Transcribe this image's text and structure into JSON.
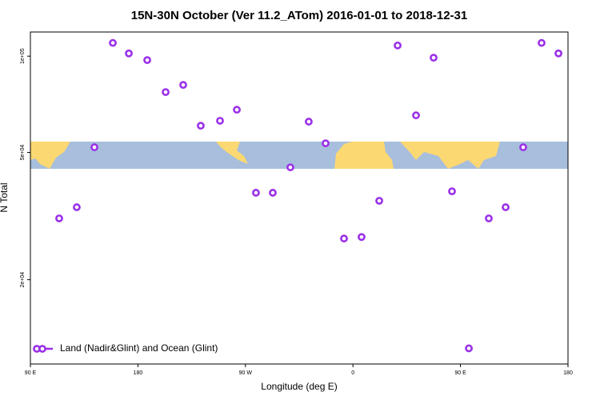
{
  "chart_data": {
    "type": "scatter",
    "title": "15N-30N October (Ver 11.2_ATom)   2016-01-01 to 2018-12-31",
    "x_label": "Longitude (deg E)",
    "y_label": "N Total",
    "xlim": [
      90,
      540
    ],
    "xticks": [
      {
        "value": 90,
        "label": "90 E"
      },
      180,
      {
        "value": 270,
        "label": "90 W"
      },
      {
        "value": 360,
        "label": "0"
      },
      {
        "value": 450,
        "label": "90 E"
      },
      {
        "value": 540,
        "label": "180"
      }
    ],
    "ylim": [
      10900,
      119000
    ],
    "log_y": true,
    "yticks": [
      {
        "value": 100000,
        "label": "1e+05"
      },
      {
        "value": 50000,
        "label": "5e+04"
      },
      {
        "value": 20000,
        "label": "2e+04"
      }
    ],
    "legend": "lower left",
    "series": [
      {
        "name": "Land (Nadir&Glint) and Ocean (Glint)",
        "color": "#9b30e8",
        "x": [
          114.1,
          128.8,
          143.6,
          159.0,
          172.4,
          187.8,
          203.2,
          217.9,
          232.6,
          248.7,
          262.8,
          278.8,
          292.9,
          307.6,
          323.0,
          337.1,
          352.5,
          367.2,
          382.0,
          397.4,
          412.8,
          427.5,
          442.9,
          457.0,
          473.7,
          487.8,
          502.5,
          517.9,
          532.0
        ],
        "values": [
          31100,
          33700,
          51900,
          110000,
          102000,
          97200,
          77200,
          81300,
          60600,
          62800,
          68000,
          37400,
          37400,
          44900,
          62400,
          53400,
          26900,
          27200,
          35300,
          108000,
          65300,
          98900,
          37800,
          12200,
          31100,
          33700,
          51900,
          110000,
          102000
        ]
      }
    ]
  }
}
